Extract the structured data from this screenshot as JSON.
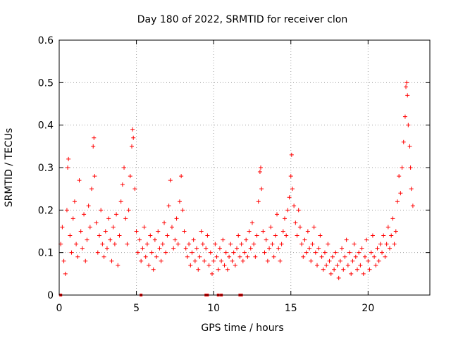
{
  "chart_data": {
    "type": "scatter",
    "title": "Day 180 of 2022, SRMTID for receiver clon",
    "xlabel": "GPS time / hours",
    "ylabel": "SRMTID / TECUs",
    "xlim": [
      0,
      24
    ],
    "ylim": [
      0,
      0.6
    ],
    "x_ticks": [
      0,
      5,
      10,
      15,
      20
    ],
    "x_tick_labels": [
      "0",
      "5",
      "10",
      "15",
      "20"
    ],
    "y_ticks": [
      0,
      0.1,
      0.2,
      0.3,
      0.4,
      0.5,
      0.6
    ],
    "y_tick_labels": [
      "0",
      "0.1",
      "0.2",
      "0.3",
      "0.4",
      "0.5",
      "0.6"
    ],
    "grid": true,
    "marker": "plus",
    "color": "#ff0000",
    "series": [
      {
        "name": "SRMTID",
        "points": [
          [
            0.1,
            0.12
          ],
          [
            0.2,
            0.16
          ],
          [
            0.3,
            0.08
          ],
          [
            0.4,
            0.05
          ],
          [
            0.5,
            0.2
          ],
          [
            0.55,
            0.3
          ],
          [
            0.6,
            0.32
          ],
          [
            0.7,
            0.14
          ],
          [
            0.8,
            0.1
          ],
          [
            0.9,
            0.18
          ],
          [
            1.0,
            0.22
          ],
          [
            1.1,
            0.12
          ],
          [
            1.2,
            0.09
          ],
          [
            1.3,
            0.27
          ],
          [
            1.4,
            0.15
          ],
          [
            1.5,
            0.11
          ],
          [
            1.6,
            0.19
          ],
          [
            1.7,
            0.08
          ],
          [
            1.8,
            0.13
          ],
          [
            1.9,
            0.21
          ],
          [
            2.0,
            0.16
          ],
          [
            2.1,
            0.25
          ],
          [
            2.2,
            0.35
          ],
          [
            2.25,
            0.37
          ],
          [
            2.3,
            0.28
          ],
          [
            2.4,
            0.17
          ],
          [
            2.5,
            0.1
          ],
          [
            2.6,
            0.14
          ],
          [
            2.7,
            0.2
          ],
          [
            2.8,
            0.12
          ],
          [
            2.9,
            0.09
          ],
          [
            3.0,
            0.15
          ],
          [
            3.1,
            0.11
          ],
          [
            3.2,
            0.18
          ],
          [
            3.3,
            0.13
          ],
          [
            3.4,
            0.08
          ],
          [
            3.5,
            0.16
          ],
          [
            3.6,
            0.12
          ],
          [
            3.7,
            0.19
          ],
          [
            3.8,
            0.07
          ],
          [
            3.9,
            0.14
          ],
          [
            4.0,
            0.22
          ],
          [
            4.1,
            0.26
          ],
          [
            4.2,
            0.3
          ],
          [
            4.3,
            0.18
          ],
          [
            4.4,
            0.12
          ],
          [
            4.5,
            0.2
          ],
          [
            4.6,
            0.28
          ],
          [
            4.7,
            0.35
          ],
          [
            4.75,
            0.39
          ],
          [
            4.8,
            0.37
          ],
          [
            4.9,
            0.25
          ],
          [
            5.0,
            0.15
          ],
          [
            5.1,
            0.1
          ],
          [
            5.2,
            0.13
          ],
          [
            5.3,
            0.08
          ],
          [
            5.4,
            0.11
          ],
          [
            5.5,
            0.16
          ],
          [
            5.6,
            0.09
          ],
          [
            5.7,
            0.12
          ],
          [
            5.8,
            0.07
          ],
          [
            5.9,
            0.14
          ],
          [
            6.0,
            0.1
          ],
          [
            6.1,
            0.06
          ],
          [
            6.2,
            0.13
          ],
          [
            6.3,
            0.09
          ],
          [
            6.4,
            0.15
          ],
          [
            6.5,
            0.11
          ],
          [
            6.6,
            0.08
          ],
          [
            6.7,
            0.12
          ],
          [
            6.8,
            0.17
          ],
          [
            6.9,
            0.1
          ],
          [
            7.0,
            0.14
          ],
          [
            7.1,
            0.21
          ],
          [
            7.2,
            0.27
          ],
          [
            7.3,
            0.16
          ],
          [
            7.4,
            0.11
          ],
          [
            7.5,
            0.13
          ],
          [
            7.6,
            0.18
          ],
          [
            7.7,
            0.12
          ],
          [
            7.8,
            0.22
          ],
          [
            7.9,
            0.28
          ],
          [
            8.0,
            0.2
          ],
          [
            8.1,
            0.15
          ],
          [
            8.2,
            0.11
          ],
          [
            8.3,
            0.09
          ],
          [
            8.4,
            0.12
          ],
          [
            8.5,
            0.07
          ],
          [
            8.6,
            0.1
          ],
          [
            8.7,
            0.13
          ],
          [
            8.8,
            0.08
          ],
          [
            8.9,
            0.11
          ],
          [
            9.0,
            0.06
          ],
          [
            9.1,
            0.09
          ],
          [
            9.2,
            0.15
          ],
          [
            9.3,
            0.12
          ],
          [
            9.4,
            0.08
          ],
          [
            9.5,
            0.11
          ],
          [
            9.6,
            0.14
          ],
          [
            9.7,
            0.07
          ],
          [
            9.8,
            0.1
          ],
          [
            9.9,
            0.05
          ],
          [
            10.0,
            0.08
          ],
          [
            10.1,
            0.12
          ],
          [
            10.2,
            0.09
          ],
          [
            10.3,
            0.06
          ],
          [
            10.4,
            0.11
          ],
          [
            10.5,
            0.08
          ],
          [
            10.6,
            0.13
          ],
          [
            10.7,
            0.07
          ],
          [
            10.8,
            0.1
          ],
          [
            10.9,
            0.06
          ],
          [
            11.0,
            0.09
          ],
          [
            11.1,
            0.12
          ],
          [
            11.2,
            0.08
          ],
          [
            11.3,
            0.1
          ],
          [
            11.4,
            0.07
          ],
          [
            11.5,
            0.11
          ],
          [
            11.6,
            0.14
          ],
          [
            11.7,
            0.09
          ],
          [
            11.8,
            0.12
          ],
          [
            11.9,
            0.08
          ],
          [
            12.0,
            0.1
          ],
          [
            12.1,
            0.13
          ],
          [
            12.2,
            0.09
          ],
          [
            12.3,
            0.15
          ],
          [
            12.4,
            0.11
          ],
          [
            12.5,
            0.17
          ],
          [
            12.6,
            0.12
          ],
          [
            12.7,
            0.09
          ],
          [
            12.8,
            0.14
          ],
          [
            12.9,
            0.22
          ],
          [
            13.0,
            0.29
          ],
          [
            13.05,
            0.3
          ],
          [
            13.1,
            0.25
          ],
          [
            13.2,
            0.15
          ],
          [
            13.3,
            0.1
          ],
          [
            13.4,
            0.13
          ],
          [
            13.5,
            0.08
          ],
          [
            13.6,
            0.11
          ],
          [
            13.7,
            0.16
          ],
          [
            13.8,
            0.12
          ],
          [
            13.9,
            0.09
          ],
          [
            14.0,
            0.14
          ],
          [
            14.1,
            0.19
          ],
          [
            14.2,
            0.11
          ],
          [
            14.3,
            0.08
          ],
          [
            14.4,
            0.12
          ],
          [
            14.5,
            0.15
          ],
          [
            14.6,
            0.18
          ],
          [
            14.7,
            0.14
          ],
          [
            14.8,
            0.2
          ],
          [
            14.9,
            0.23
          ],
          [
            15.0,
            0.28
          ],
          [
            15.05,
            0.33
          ],
          [
            15.1,
            0.25
          ],
          [
            15.2,
            0.21
          ],
          [
            15.3,
            0.17
          ],
          [
            15.4,
            0.14
          ],
          [
            15.5,
            0.2
          ],
          [
            15.6,
            0.16
          ],
          [
            15.7,
            0.12
          ],
          [
            15.8,
            0.09
          ],
          [
            15.9,
            0.13
          ],
          [
            16.0,
            0.1
          ],
          [
            16.1,
            0.15
          ],
          [
            16.2,
            0.11
          ],
          [
            16.3,
            0.08
          ],
          [
            16.4,
            0.12
          ],
          [
            16.5,
            0.16
          ],
          [
            16.6,
            0.1
          ],
          [
            16.7,
            0.07
          ],
          [
            16.8,
            0.11
          ],
          [
            16.9,
            0.14
          ],
          [
            17.0,
            0.09
          ],
          [
            17.1,
            0.06
          ],
          [
            17.2,
            0.1
          ],
          [
            17.3,
            0.07
          ],
          [
            17.4,
            0.12
          ],
          [
            17.5,
            0.08
          ],
          [
            17.6,
            0.05
          ],
          [
            17.7,
            0.09
          ],
          [
            17.8,
            0.06
          ],
          [
            17.9,
            0.1
          ],
          [
            18.0,
            0.07
          ],
          [
            18.1,
            0.04
          ],
          [
            18.2,
            0.08
          ],
          [
            18.3,
            0.11
          ],
          [
            18.4,
            0.06
          ],
          [
            18.5,
            0.09
          ],
          [
            18.6,
            0.13
          ],
          [
            18.7,
            0.07
          ],
          [
            18.8,
            0.1
          ],
          [
            18.9,
            0.05
          ],
          [
            19.0,
            0.08
          ],
          [
            19.1,
            0.12
          ],
          [
            19.2,
            0.09
          ],
          [
            19.3,
            0.06
          ],
          [
            19.4,
            0.1
          ],
          [
            19.5,
            0.07
          ],
          [
            19.6,
            0.11
          ],
          [
            19.7,
            0.05
          ],
          [
            19.8,
            0.09
          ],
          [
            19.9,
            0.13
          ],
          [
            20.0,
            0.08
          ],
          [
            20.1,
            0.06
          ],
          [
            20.2,
            0.1
          ],
          [
            20.3,
            0.14
          ],
          [
            20.4,
            0.09
          ],
          [
            20.5,
            0.07
          ],
          [
            20.6,
            0.11
          ],
          [
            20.7,
            0.08
          ],
          [
            20.8,
            0.12
          ],
          [
            20.9,
            0.1
          ],
          [
            21.0,
            0.14
          ],
          [
            21.1,
            0.09
          ],
          [
            21.2,
            0.12
          ],
          [
            21.3,
            0.16
          ],
          [
            21.4,
            0.11
          ],
          [
            21.5,
            0.14
          ],
          [
            21.6,
            0.18
          ],
          [
            21.7,
            0.12
          ],
          [
            21.8,
            0.15
          ],
          [
            21.9,
            0.22
          ],
          [
            22.0,
            0.28
          ],
          [
            22.1,
            0.24
          ],
          [
            22.2,
            0.3
          ],
          [
            22.3,
            0.36
          ],
          [
            22.4,
            0.42
          ],
          [
            22.45,
            0.49
          ],
          [
            22.5,
            0.5
          ],
          [
            22.55,
            0.47
          ],
          [
            22.6,
            0.4
          ],
          [
            22.7,
            0.35
          ],
          [
            22.75,
            0.3
          ],
          [
            22.8,
            0.25
          ],
          [
            22.9,
            0.21
          ]
        ]
      }
    ],
    "axis_markers": {
      "note": "square markers along the x-axis at y=0",
      "x": [
        0.1,
        5.3,
        9.5,
        9.6,
        10.3,
        10.5,
        11.7,
        11.8
      ]
    }
  }
}
